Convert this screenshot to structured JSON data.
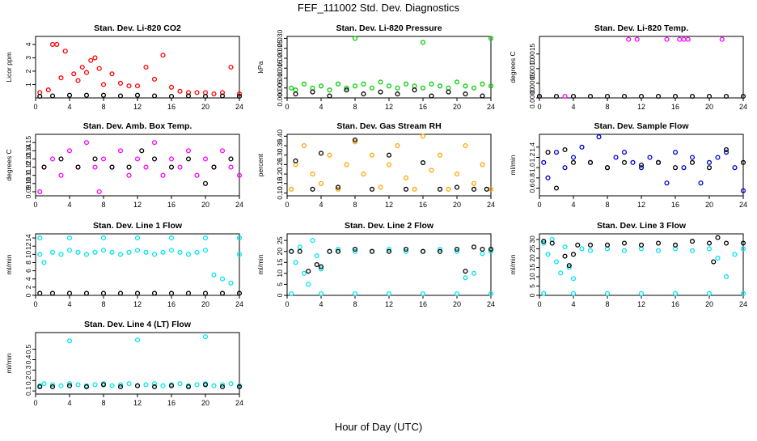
{
  "page": {
    "title": "FEF_111002  Std. Dev. Diagnostics",
    "xlabel": "Hour of Day (UTC)"
  },
  "chart_data": [
    {
      "type": "scatter",
      "title": "Stan. Dev. Li-820 CO2",
      "ylabel": "Licor ppm",
      "xlim": [
        0,
        24
      ],
      "ylim": [
        0,
        4.6
      ],
      "xticks": [
        0,
        4,
        8,
        12,
        16,
        20,
        24
      ],
      "yticks": [
        1,
        2,
        3,
        4
      ],
      "series": [
        {
          "color": "#ff0000",
          "x": [
            0.5,
            1.5,
            2,
            2.5,
            3,
            3.5,
            4.5,
            5,
            5.5,
            6,
            6.5,
            7,
            7.5,
            8,
            9,
            10,
            11,
            12,
            13,
            14,
            15,
            16,
            17,
            18,
            19,
            20,
            21,
            22,
            23,
            24
          ],
          "y": [
            0.4,
            0.6,
            4.0,
            4.0,
            1.5,
            3.5,
            1.8,
            1.3,
            2.3,
            1.9,
            2.8,
            3.0,
            2.2,
            1.0,
            1.8,
            1.1,
            0.9,
            0.9,
            2.3,
            1.4,
            3.2,
            0.8,
            0.5,
            0.4,
            0.4,
            0.4,
            0.3,
            0.4,
            2.3,
            0.3
          ]
        },
        {
          "color": "#000000",
          "x": [
            0.5,
            2,
            4,
            6,
            8,
            10,
            12,
            14,
            16,
            18,
            20,
            22,
            24
          ],
          "y": [
            0.1,
            0.15,
            0.2,
            0.2,
            0.2,
            0.15,
            0.2,
            0.15,
            0.1,
            0.15,
            0.1,
            0.15,
            0.1
          ]
        }
      ]
    },
    {
      "type": "scatter",
      "title": "Stan. Dev. Li-820 Pressure",
      "ylabel": "kPa",
      "xlim": [
        0,
        24
      ],
      "ylim": [
        0,
        0.031
      ],
      "xticks": [
        0,
        4,
        8,
        12,
        16,
        20,
        24
      ],
      "yticks": [
        0.0,
        0.005,
        0.01,
        0.015,
        0.02,
        0.025,
        0.03
      ],
      "series": [
        {
          "color": "#00cc00",
          "x": [
            0.5,
            1,
            2,
            3,
            4,
            5,
            6,
            7,
            8,
            9,
            10,
            11,
            12,
            13,
            14,
            15,
            16,
            17,
            18,
            19,
            20,
            21,
            22,
            23,
            24,
            8,
            16,
            24
          ],
          "y": [
            0.005,
            0.004,
            0.007,
            0.005,
            0.006,
            0.004,
            0.007,
            0.005,
            0.006,
            0.007,
            0.005,
            0.008,
            0.006,
            0.005,
            0.007,
            0.006,
            0.005,
            0.007,
            0.006,
            0.005,
            0.008,
            0.006,
            0.005,
            0.007,
            0.006,
            0.03,
            0.028,
            0.03
          ]
        },
        {
          "color": "#000000",
          "x": [
            1,
            3,
            5,
            7,
            9,
            11,
            13,
            15,
            17,
            19,
            21,
            23
          ],
          "y": [
            0.002,
            0.003,
            0.001,
            0.004,
            0.002,
            0.003,
            0.002,
            0.004,
            0.001,
            0.003,
            0.002,
            0.001
          ]
        }
      ]
    },
    {
      "type": "scatter",
      "title": "Stan. Dev. Li-820 Temp.",
      "ylabel": "degrees C",
      "xlim": [
        0,
        24
      ],
      "ylim": [
        0,
        0.0021
      ],
      "xticks": [
        0,
        4,
        8,
        12,
        16,
        20,
        24
      ],
      "yticks": [
        0.0,
        0.0005,
        0.001,
        0.0015
      ],
      "series": [
        {
          "color": "#ff00ff",
          "x": [
            0,
            3,
            10.5,
            11.5,
            15,
            16.5,
            17,
            17.5,
            21.5
          ],
          "y": [
            0,
            0,
            0.002,
            0.002,
            0.002,
            0.002,
            0.002,
            0.002,
            0.002
          ]
        },
        {
          "color": "#000000",
          "x": [
            0,
            2,
            4,
            6,
            8,
            10,
            12,
            14,
            16,
            18,
            20,
            22,
            24
          ],
          "y": [
            0,
            0,
            0,
            0,
            0,
            0,
            0,
            0,
            0,
            0,
            0,
            0,
            0
          ]
        }
      ]
    },
    {
      "type": "scatter",
      "title": "Stan. Dev. Amb. Box Temp.",
      "ylabel": "degrees C",
      "xlim": [
        0,
        24
      ],
      "ylim": [
        0.085,
        0.16
      ],
      "xticks": [
        0,
        4,
        8,
        12,
        16,
        20,
        24
      ],
      "yticks": [
        0.09,
        0.1,
        0.11,
        0.12,
        0.13,
        0.14,
        0.15
      ],
      "series": [
        {
          "color": "#ff00ff",
          "x": [
            0.5,
            1,
            2,
            3,
            4,
            5,
            6,
            7,
            7.5,
            8,
            9,
            10,
            11,
            12,
            13,
            14,
            15,
            16,
            17,
            18,
            19,
            20,
            21,
            22,
            23,
            24
          ],
          "y": [
            0.09,
            0.12,
            0.13,
            0.11,
            0.14,
            0.12,
            0.15,
            0.12,
            0.09,
            0.13,
            0.12,
            0.14,
            0.11,
            0.13,
            0.12,
            0.15,
            0.11,
            0.13,
            0.12,
            0.14,
            0.11,
            0.13,
            0.12,
            0.14,
            0.12,
            0.11
          ]
        },
        {
          "color": "#000000",
          "x": [
            1,
            3,
            5,
            7,
            9,
            11,
            12.5,
            14,
            16,
            18,
            20,
            21,
            23
          ],
          "y": [
            0.12,
            0.13,
            0.12,
            0.13,
            0.12,
            0.12,
            0.14,
            0.13,
            0.12,
            0.13,
            0.1,
            0.12,
            0.13
          ]
        }
      ]
    },
    {
      "type": "scatter",
      "title": "Stan. Dev. Gas Stream RH",
      "ylabel": "percent",
      "xlim": [
        0,
        24
      ],
      "ylim": [
        0.085,
        0.41
      ],
      "xticks": [
        0,
        4,
        8,
        12,
        16,
        20,
        24
      ],
      "yticks": [
        0.1,
        0.15,
        0.2,
        0.25,
        0.3,
        0.35,
        0.4
      ],
      "series": [
        {
          "color": "#ffa500",
          "x": [
            0.5,
            1,
            2,
            3,
            4,
            5,
            6,
            7,
            8,
            9,
            10,
            11,
            12,
            13,
            14,
            15,
            16,
            17,
            18,
            19,
            20,
            21,
            22,
            23,
            24
          ],
          "y": [
            0.12,
            0.25,
            0.35,
            0.2,
            0.15,
            0.3,
            0.12,
            0.25,
            0.37,
            0.2,
            0.3,
            0.13,
            0.25,
            0.35,
            0.18,
            0.12,
            0.4,
            0.22,
            0.3,
            0.12,
            0.2,
            0.35,
            0.15,
            0.25,
            0.12
          ]
        },
        {
          "color": "#000000",
          "x": [
            1,
            3,
            4,
            6,
            8,
            10,
            12,
            14,
            16,
            18,
            20,
            22,
            23.5
          ],
          "y": [
            0.27,
            0.12,
            0.31,
            0.13,
            0.38,
            0.12,
            0.3,
            0.12,
            0.26,
            0.12,
            0.13,
            0.12,
            0.12
          ]
        }
      ]
    },
    {
      "type": "scatter",
      "title": "Stan. Dev. Sample Flow",
      "ylabel": "ml/min",
      "xlim": [
        0,
        24
      ],
      "ylim": [
        0.45,
        1.65
      ],
      "xticks": [
        0,
        4,
        8,
        12,
        16,
        20,
        24
      ],
      "yticks": [
        0.6,
        0.8,
        1.0,
        1.2,
        1.4
      ],
      "series": [
        {
          "color": "#0000cc",
          "x": [
            0.5,
            1,
            2,
            3,
            4,
            5,
            6,
            7,
            8,
            9,
            10,
            11,
            12,
            13,
            14,
            15,
            16,
            17,
            18,
            19,
            20,
            21,
            22,
            23,
            24
          ],
          "y": [
            1.1,
            0.8,
            1.3,
            1.0,
            1.2,
            1.4,
            1.1,
            1.6,
            1.0,
            1.2,
            1.3,
            1.1,
            1.0,
            1.2,
            1.1,
            0.7,
            1.3,
            1.0,
            1.2,
            0.7,
            1.1,
            1.2,
            1.3,
            1.0,
            0.55
          ]
        },
        {
          "color": "#000000",
          "x": [
            1,
            2,
            3,
            4,
            6,
            8,
            10,
            12,
            14,
            16,
            18,
            20,
            22,
            24
          ],
          "y": [
            1.3,
            0.6,
            1.35,
            1.1,
            1.1,
            1.0,
            1.1,
            1.05,
            1.1,
            1.0,
            1.1,
            1.0,
            1.35,
            1.1
          ]
        }
      ]
    },
    {
      "type": "scatter",
      "title": "Stan. Dev. Line 1 Flow",
      "ylabel": "ml/min",
      "xlim": [
        0,
        24
      ],
      "ylim": [
        0,
        15
      ],
      "xticks": [
        0,
        4,
        8,
        12,
        16,
        20,
        24
      ],
      "yticks": [
        0,
        2,
        4,
        6,
        8,
        10,
        12,
        14
      ],
      "series": [
        {
          "color": "#00e5ee",
          "x": [
            0.5,
            1,
            2,
            3,
            4,
            5,
            6,
            7,
            8,
            9,
            10,
            11,
            12,
            13,
            14,
            15,
            16,
            17,
            18,
            19,
            20,
            21,
            22,
            23,
            24,
            0.5,
            4,
            8,
            12,
            16,
            20,
            24
          ],
          "y": [
            10,
            8,
            10.5,
            10,
            11,
            10.5,
            10,
            10.5,
            11,
            10.5,
            10,
            10.5,
            11,
            10.5,
            10,
            10.5,
            11,
            10.5,
            10,
            10.5,
            11,
            5,
            4,
            3,
            10,
            14,
            14,
            14,
            14,
            14,
            14,
            14
          ]
        },
        {
          "color": "#000000",
          "x": [
            0.5,
            2,
            4,
            6,
            8,
            10,
            12,
            14,
            16,
            18,
            20,
            22,
            24
          ],
          "y": [
            0.5,
            0.5,
            0.5,
            0.5,
            0.5,
            0.5,
            0.5,
            0.5,
            0.5,
            0.5,
            0.5,
            0.5,
            0.5
          ]
        }
      ]
    },
    {
      "type": "scatter",
      "title": "Stan. Dev. Line 2 Flow",
      "ylabel": "ml/min",
      "xlim": [
        0,
        24
      ],
      "ylim": [
        0,
        28
      ],
      "xticks": [
        0,
        4,
        8,
        12,
        16,
        20,
        24
      ],
      "yticks": [
        0,
        5,
        10,
        15,
        20,
        25
      ],
      "series": [
        {
          "color": "#00e5ee",
          "x": [
            0.5,
            1,
            1.5,
            2,
            2.5,
            3,
            3.5,
            4,
            5,
            6,
            8,
            10,
            12,
            14,
            16,
            18,
            20,
            21,
            22,
            23,
            24,
            0.5,
            4,
            8,
            12,
            16,
            20,
            24
          ],
          "y": [
            20,
            15,
            22,
            10,
            5,
            25,
            18,
            12,
            20,
            21,
            20,
            20,
            21,
            20,
            20,
            21,
            20,
            8,
            10,
            19,
            20,
            0.5,
            0.5,
            0.5,
            0.5,
            0.5,
            0.5,
            0.5
          ]
        },
        {
          "color": "#000000",
          "x": [
            0.5,
            1.5,
            2.5,
            3.5,
            4,
            5,
            6,
            8,
            10,
            12,
            14,
            16,
            18,
            20,
            21,
            22,
            23,
            24
          ],
          "y": [
            20,
            20,
            11,
            14,
            13,
            20,
            20,
            21,
            20,
            20,
            21,
            20,
            20,
            21,
            11,
            22,
            21,
            21
          ]
        }
      ]
    },
    {
      "type": "scatter",
      "title": "Stan. Dev. Line 3 Flow",
      "ylabel": "ml/min",
      "xlim": [
        0,
        24
      ],
      "ylim": [
        0,
        33
      ],
      "xticks": [
        0,
        4,
        8,
        12,
        16,
        20,
        24
      ],
      "yticks": [
        0,
        5,
        10,
        15,
        20,
        25,
        30
      ],
      "series": [
        {
          "color": "#00e5ee",
          "x": [
            0.5,
            1,
            1.5,
            2,
            2.5,
            3,
            3.5,
            4,
            5,
            6,
            8,
            10,
            12,
            14,
            16,
            18,
            20,
            21,
            22,
            23,
            24,
            0.5,
            4,
            8,
            12,
            16,
            20,
            24
          ],
          "y": [
            28,
            22,
            30,
            18,
            12,
            26,
            15,
            9,
            25,
            24,
            25,
            24,
            25,
            24,
            25,
            24,
            25,
            20,
            10,
            22,
            25,
            1,
            1,
            1,
            1,
            1,
            1,
            1
          ]
        },
        {
          "color": "#000000",
          "x": [
            0.5,
            1.5,
            3,
            3.5,
            4,
            4.5,
            6,
            8,
            10,
            12,
            14,
            16,
            18,
            20,
            20.5,
            21,
            22,
            24
          ],
          "y": [
            29,
            28,
            21,
            16,
            22,
            27,
            27,
            27,
            28,
            27,
            28,
            27,
            29,
            28,
            18,
            31,
            28,
            28
          ]
        }
      ]
    },
    {
      "type": "scatter",
      "title": "Stan. Dev. Line 4 (LT) Flow",
      "ylabel": "ml/min",
      "xlim": [
        0,
        24
      ],
      "ylim": [
        0.07,
        0.66
      ],
      "xticks": [
        0,
        4,
        8,
        12,
        16,
        20,
        24
      ],
      "yticks": [
        0.1,
        0.2,
        0.3,
        0.4,
        0.5
      ],
      "series": [
        {
          "color": "#00e5ee",
          "x": [
            0.5,
            1,
            2,
            3,
            4,
            5,
            6,
            7,
            8,
            9,
            10,
            11,
            12,
            13,
            14,
            15,
            16,
            17,
            18,
            19,
            20,
            21,
            22,
            23,
            24,
            4,
            12,
            20
          ],
          "y": [
            0.15,
            0.17,
            0.16,
            0.15,
            0.17,
            0.16,
            0.15,
            0.16,
            0.17,
            0.15,
            0.16,
            0.17,
            0.15,
            0.16,
            0.17,
            0.15,
            0.16,
            0.17,
            0.15,
            0.16,
            0.17,
            0.15,
            0.16,
            0.17,
            0.15,
            0.58,
            0.59,
            0.62
          ]
        },
        {
          "color": "#000000",
          "x": [
            0.5,
            2,
            4,
            6,
            8,
            10,
            12,
            14,
            16,
            18,
            20,
            22,
            24
          ],
          "y": [
            0.14,
            0.14,
            0.15,
            0.14,
            0.16,
            0.14,
            0.15,
            0.14,
            0.15,
            0.14,
            0.16,
            0.14,
            0.14
          ]
        }
      ]
    }
  ]
}
